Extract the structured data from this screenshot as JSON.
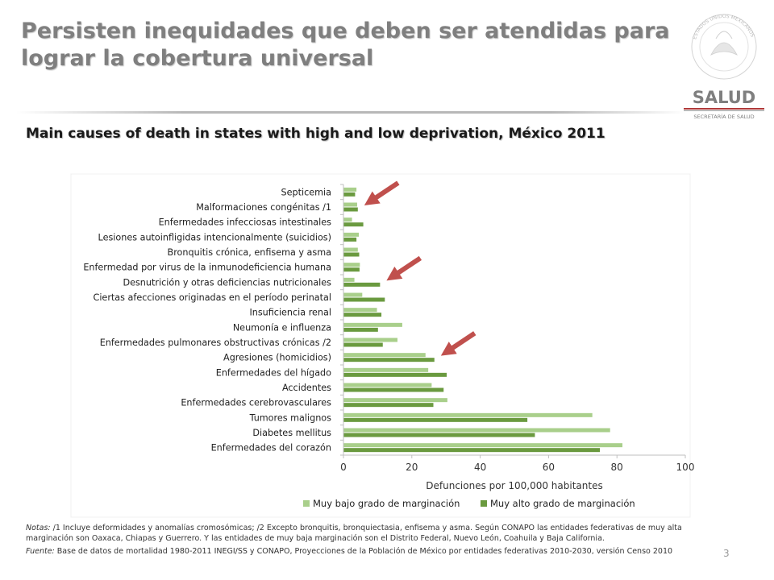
{
  "slide": {
    "title": "Persisten inequidades que deben ser atendidas para lograr la cobertura universal",
    "subtitle": "Main causes of death in states with high and low deprivation, México 2011",
    "logo_text": "SALUD",
    "logo_subtext": "SECRETARÍA DE SALUD",
    "seal_text": "ESTADOS UNIDOS MEXICANOS",
    "page_number": "3"
  },
  "notes": {
    "notes_label": "Notas:",
    "notes_text": "/1 Incluye deformidades y anomalías cromosómicas; /2 Excepto bronquitis, bronquiectasia, enfisema y asma. Según CONAPO las entidades federativas de muy alta marginación son Oaxaca, Chiapas y Guerrero. Y las entidades de muy baja marginación son el Distrito Federal, Nuevo León, Coahuila y Baja California.",
    "source_label": "Fuente:",
    "source_text": "Base de datos de mortalidad 1980-2011 INEGI/SS y CONAPO, Proyecciones de la Población de México por entidades federativas 2010-2030, versión Censo 2010"
  },
  "colors": {
    "low_marginalization": "#a9cf8b",
    "high_marginalization": "#6a9a3f",
    "arrow": "#c0504d",
    "axis": "#d9d9d9"
  },
  "chart_data": {
    "type": "bar",
    "orientation": "horizontal",
    "categories": [
      "Septicemia",
      "Malformaciones congénitas /1",
      "Enfermedades infecciosas intestinales",
      "Lesiones autoinfligidas intencionalmente (suicidios)",
      "Bronquitis crónica, enfisema y asma",
      "Enfermedad por virus de la inmunodeficiencia humana",
      "Desnutrición y otras deficiencias nutricionales",
      "Ciertas afecciones originadas en el período perinatal",
      "Insuficiencia renal",
      "Neumonía e influenza",
      "Enfermedades pulmonares obstructivas crónicas /2",
      "Agresiones (homicidios)",
      "Enfermedades del hígado",
      "Accidentes",
      "Enfermedades cerebrovasculares",
      "Tumores malignos",
      "Diabetes mellitus",
      "Enfermedades del corazón"
    ],
    "series": [
      {
        "name": "Muy bajo grado de marginación",
        "values": [
          3.8,
          4.0,
          2.5,
          4.5,
          4.2,
          4.8,
          3.2,
          5.5,
          9.8,
          17.2,
          15.8,
          24.0,
          24.8,
          25.8,
          30.4,
          72.8,
          78.0,
          81.6
        ]
      },
      {
        "name": "Muy alto grado de marginación",
        "values": [
          3.4,
          4.2,
          5.8,
          3.8,
          4.6,
          4.7,
          10.7,
          12.1,
          11.1,
          10.1,
          11.5,
          26.6,
          30.2,
          29.3,
          26.3,
          53.8,
          56.0,
          75.0
        ]
      }
    ],
    "xlabel": "Defunciones por 100,000 habitantes",
    "xlim": [
      0,
      100
    ],
    "xticks": [
      0,
      20,
      40,
      60,
      80,
      100
    ],
    "legend_position": "bottom",
    "annotations": [
      {
        "type": "arrow",
        "points_to": "Malformaciones congénitas /1"
      },
      {
        "type": "arrow",
        "points_to": "Desnutrición y otras deficiencias nutricionales"
      },
      {
        "type": "arrow",
        "points_to": "Agresiones (homicidios)"
      }
    ]
  }
}
